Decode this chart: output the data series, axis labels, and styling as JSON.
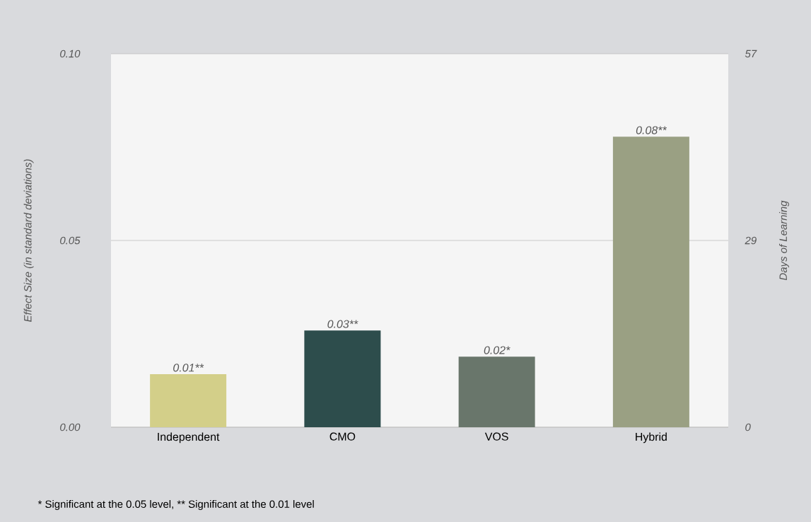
{
  "chart_data": {
    "type": "bar",
    "categories": [
      "Independent",
      "CMO",
      "VOS",
      "Hybrid"
    ],
    "values": [
      0.0142,
      0.0259,
      0.0189,
      0.0778
    ],
    "colors": [
      "#d3cf89",
      "#2d4d4c",
      "#69766b",
      "#9aa083"
    ],
    "value_labels": [
      "0.01**",
      "0.03**",
      "0.02*",
      "0.08**"
    ],
    "ylabel": "Effect Size (in standard deviations)",
    "y2label": "Days of Learning",
    "ylim": [
      0,
      0.1
    ],
    "yticks": [
      {
        "value": 0,
        "label": "0.00"
      },
      {
        "value": 0.05,
        "label": "0.05"
      },
      {
        "value": 0.1,
        "label": "0.10"
      }
    ],
    "y2lim": [
      0,
      57
    ],
    "y2ticks": [
      0,
      {
        "value": 28.5,
        "label": "29"
      },
      57
    ],
    "grid": "y",
    "annotations": [
      "* Significant at the 0.05 level, ** Significant at the 0.01 level"
    ]
  }
}
